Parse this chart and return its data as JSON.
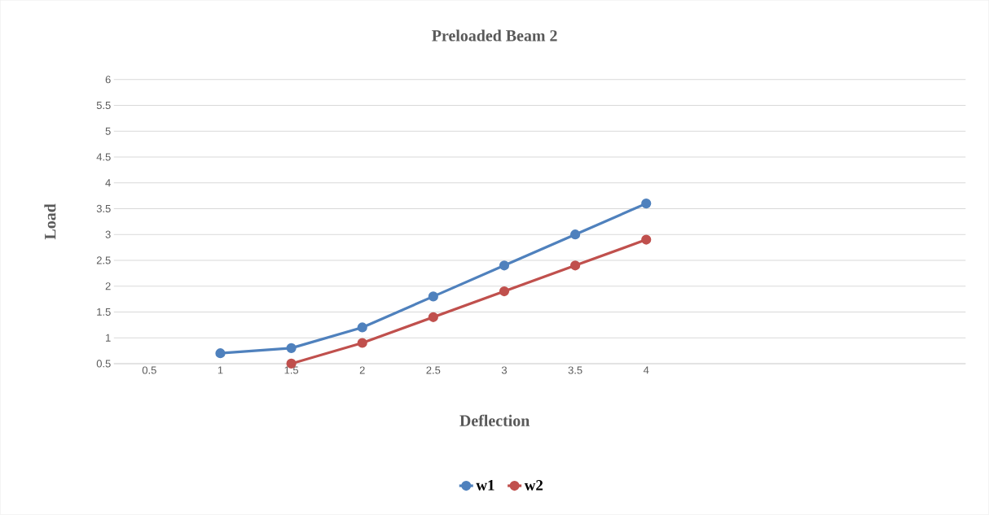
{
  "chart_data": {
    "type": "line",
    "title": "Preloaded Beam 2",
    "xlabel": "Deflection",
    "ylabel": "Load",
    "categories": [
      "0.5",
      "1",
      "1.5",
      "2",
      "2.5",
      "3",
      "3.5",
      "4",
      null,
      null,
      null,
      null
    ],
    "series": [
      {
        "name": "w1",
        "color": "#4f81bd",
        "values": [
          null,
          0.7,
          0.8,
          1.2,
          1.8,
          2.4,
          3.0,
          3.6,
          null,
          null,
          null,
          null
        ]
      },
      {
        "name": "w2",
        "color": "#c0504d",
        "values": [
          null,
          null,
          0.5,
          0.9,
          1.4,
          1.9,
          2.4,
          2.9,
          null,
          null,
          null,
          null
        ]
      }
    ],
    "ylim": [
      0.5,
      6
    ],
    "yticks": [
      0.5,
      1,
      1.5,
      2,
      2.5,
      3,
      3.5,
      4,
      4.5,
      5,
      5.5,
      6
    ],
    "grid": "y",
    "legend": "bottom",
    "marker": "circle",
    "line_style": "solid"
  }
}
